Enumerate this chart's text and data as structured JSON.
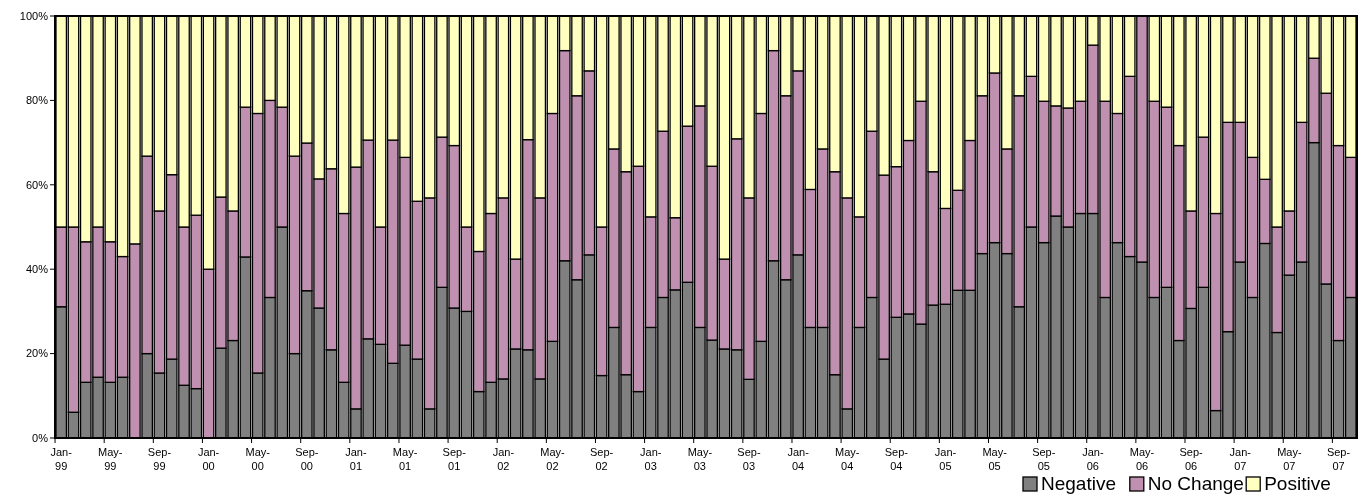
{
  "chart_data": {
    "type": "bar",
    "stacked": true,
    "legend": "bottom",
    "grid": false,
    "categories": [
      "Jan-99",
      null,
      null,
      null,
      "May-99",
      null,
      null,
      null,
      "Sep-99",
      null,
      null,
      null,
      "Jan-00",
      null,
      null,
      null,
      "May-00",
      null,
      null,
      null,
      "Sep-00",
      null,
      null,
      null,
      "Jan-01",
      null,
      null,
      null,
      "May-01",
      null,
      null,
      null,
      "Sep-01",
      null,
      null,
      null,
      "Jan-02",
      null,
      null,
      null,
      "May-02",
      null,
      null,
      null,
      "Sep-02",
      null,
      null,
      null,
      "Jan-03",
      null,
      null,
      null,
      "May-03",
      null,
      null,
      null,
      "Sep-03",
      null,
      null,
      null,
      "Jan-04",
      null,
      null,
      null,
      "May-04",
      null,
      null,
      null,
      "Sep-04",
      null,
      null,
      null,
      "Jan-05",
      null,
      null,
      null,
      "May-05",
      null,
      null,
      null,
      "Sep-05",
      null,
      null,
      null,
      "Jan-06",
      null,
      null,
      null,
      "May-06",
      null,
      null,
      null,
      "Sep-06",
      null,
      null,
      null,
      "Jan-07",
      null,
      null,
      null,
      "May-07",
      null,
      null,
      null,
      "Sep-07",
      null
    ],
    "ylim": [
      0,
      100
    ],
    "yticks": [
      {
        "value": 0,
        "label": "0%"
      },
      {
        "value": 20,
        "label": "20%"
      },
      {
        "value": 40,
        "label": "40%"
      },
      {
        "value": 60,
        "label": "60%"
      },
      {
        "value": 80,
        "label": "80%"
      },
      {
        "value": 100,
        "label": "100%"
      }
    ],
    "series": [
      {
        "name": "Negative",
        "color": "#808080",
        "values": [
          31.1,
          6.1,
          13.2,
          14.4,
          13.2,
          14.4,
          0,
          20,
          15.4,
          18.7,
          12.5,
          11.7,
          0,
          21.3,
          23.1,
          42.9,
          15.4,
          33.3,
          50,
          20,
          34.9,
          30.8,
          20.9,
          13.2,
          6.9,
          23.5,
          22.2,
          17.7,
          22,
          18.7,
          6.9,
          35.7,
          30.8,
          30,
          11,
          13.2,
          14,
          21.1,
          20.9,
          14,
          22.9,
          42,
          37.5,
          43.4,
          14.8,
          26.2,
          15,
          11,
          26.2,
          33.3,
          35.1,
          36.9,
          26.2,
          23.2,
          21.1,
          20.9,
          13.9,
          22.9,
          42,
          37.5,
          43.4,
          26.2,
          26.2,
          15,
          6.9,
          26.2,
          33.3,
          18.7,
          28.6,
          29.4,
          27,
          31.5,
          31.7,
          35,
          35,
          43.7,
          46.3,
          43.7,
          31.1,
          50,
          46.3,
          52.6,
          50,
          53.2,
          53.2,
          33.3,
          46.3,
          43,
          41.7,
          33.3,
          35.7,
          23.1,
          30.7,
          35.7,
          6.5,
          25.2,
          41.7,
          33.3,
          46.1,
          25,
          38.6,
          41.7,
          70,
          36.5,
          23.1,
          33.3
        ]
      },
      {
        "name": "No Change",
        "color": "#c090b0",
        "values": [
          18.9,
          43.9,
          33.3,
          35.6,
          33.3,
          28.6,
          46,
          46.8,
          38.4,
          43.7,
          37.5,
          41.1,
          40,
          35.8,
          30.7,
          35.5,
          61.5,
          46.7,
          28.4,
          46.8,
          35,
          30.6,
          42.9,
          40,
          57.3,
          47.1,
          27.8,
          52.9,
          44.5,
          37.4,
          50,
          35.6,
          38.5,
          20,
          33.2,
          40,
          42.9,
          21.3,
          49.8,
          42.9,
          54,
          49.8,
          43.6,
          43.6,
          35.2,
          42.3,
          48.1,
          53.4,
          26.2,
          39.4,
          17.1,
          37,
          52.5,
          41.2,
          21.3,
          50,
          43,
          54,
          49.8,
          43.6,
          43.6,
          32.7,
          42.3,
          48.1,
          50,
          26.2,
          39.4,
          43.6,
          35.7,
          41.1,
          52.8,
          31.6,
          22.7,
          23.7,
          35.5,
          37.4,
          40.2,
          24.8,
          50,
          35.7,
          33.5,
          26.1,
          28.2,
          26.6,
          39.9,
          46.5,
          30.6,
          42.7,
          58.3,
          46.5,
          42.7,
          46.2,
          23.1,
          35.6,
          46.7,
          49.6,
          33.1,
          33.2,
          15.2,
          25,
          15.2,
          33.1,
          20,
          45.2,
          46.2,
          33.2
        ]
      },
      {
        "name": "Positive",
        "color": "#ffffc0",
        "values": [
          50,
          50,
          53.5,
          50,
          53.5,
          57,
          54,
          33.2,
          46.2,
          37.6,
          50,
          47.2,
          60,
          42.9,
          46.2,
          21.6,
          23.1,
          20,
          21.6,
          33.2,
          30.1,
          38.6,
          36.2,
          46.8,
          35.8,
          29.4,
          50,
          29.4,
          33.5,
          43.9,
          43.1,
          28.7,
          30.7,
          50,
          55.8,
          46.8,
          43.1,
          57.6,
          29.3,
          43.1,
          23.1,
          8.2,
          18.9,
          13,
          50,
          31.5,
          36.9,
          35.6,
          47.6,
          27.3,
          47.8,
          26.1,
          21.3,
          35.6,
          57.6,
          29.1,
          43.1,
          23.1,
          8.2,
          18.9,
          13,
          41.1,
          31.5,
          36.9,
          43.1,
          47.6,
          27.3,
          37.7,
          35.7,
          29.5,
          20.2,
          36.9,
          45.6,
          41.3,
          29.5,
          18.9,
          13.5,
          31.5,
          18.9,
          14.3,
          20.2,
          21.3,
          21.8,
          20.2,
          6.9,
          20.2,
          23.1,
          14.3,
          0,
          20.2,
          21.6,
          30.7,
          46.2,
          28.7,
          46.8,
          25.2,
          25.2,
          33.5,
          38.7,
          50,
          46.2,
          25.2,
          10,
          18.3,
          30.7,
          33.5
        ]
      }
    ]
  }
}
